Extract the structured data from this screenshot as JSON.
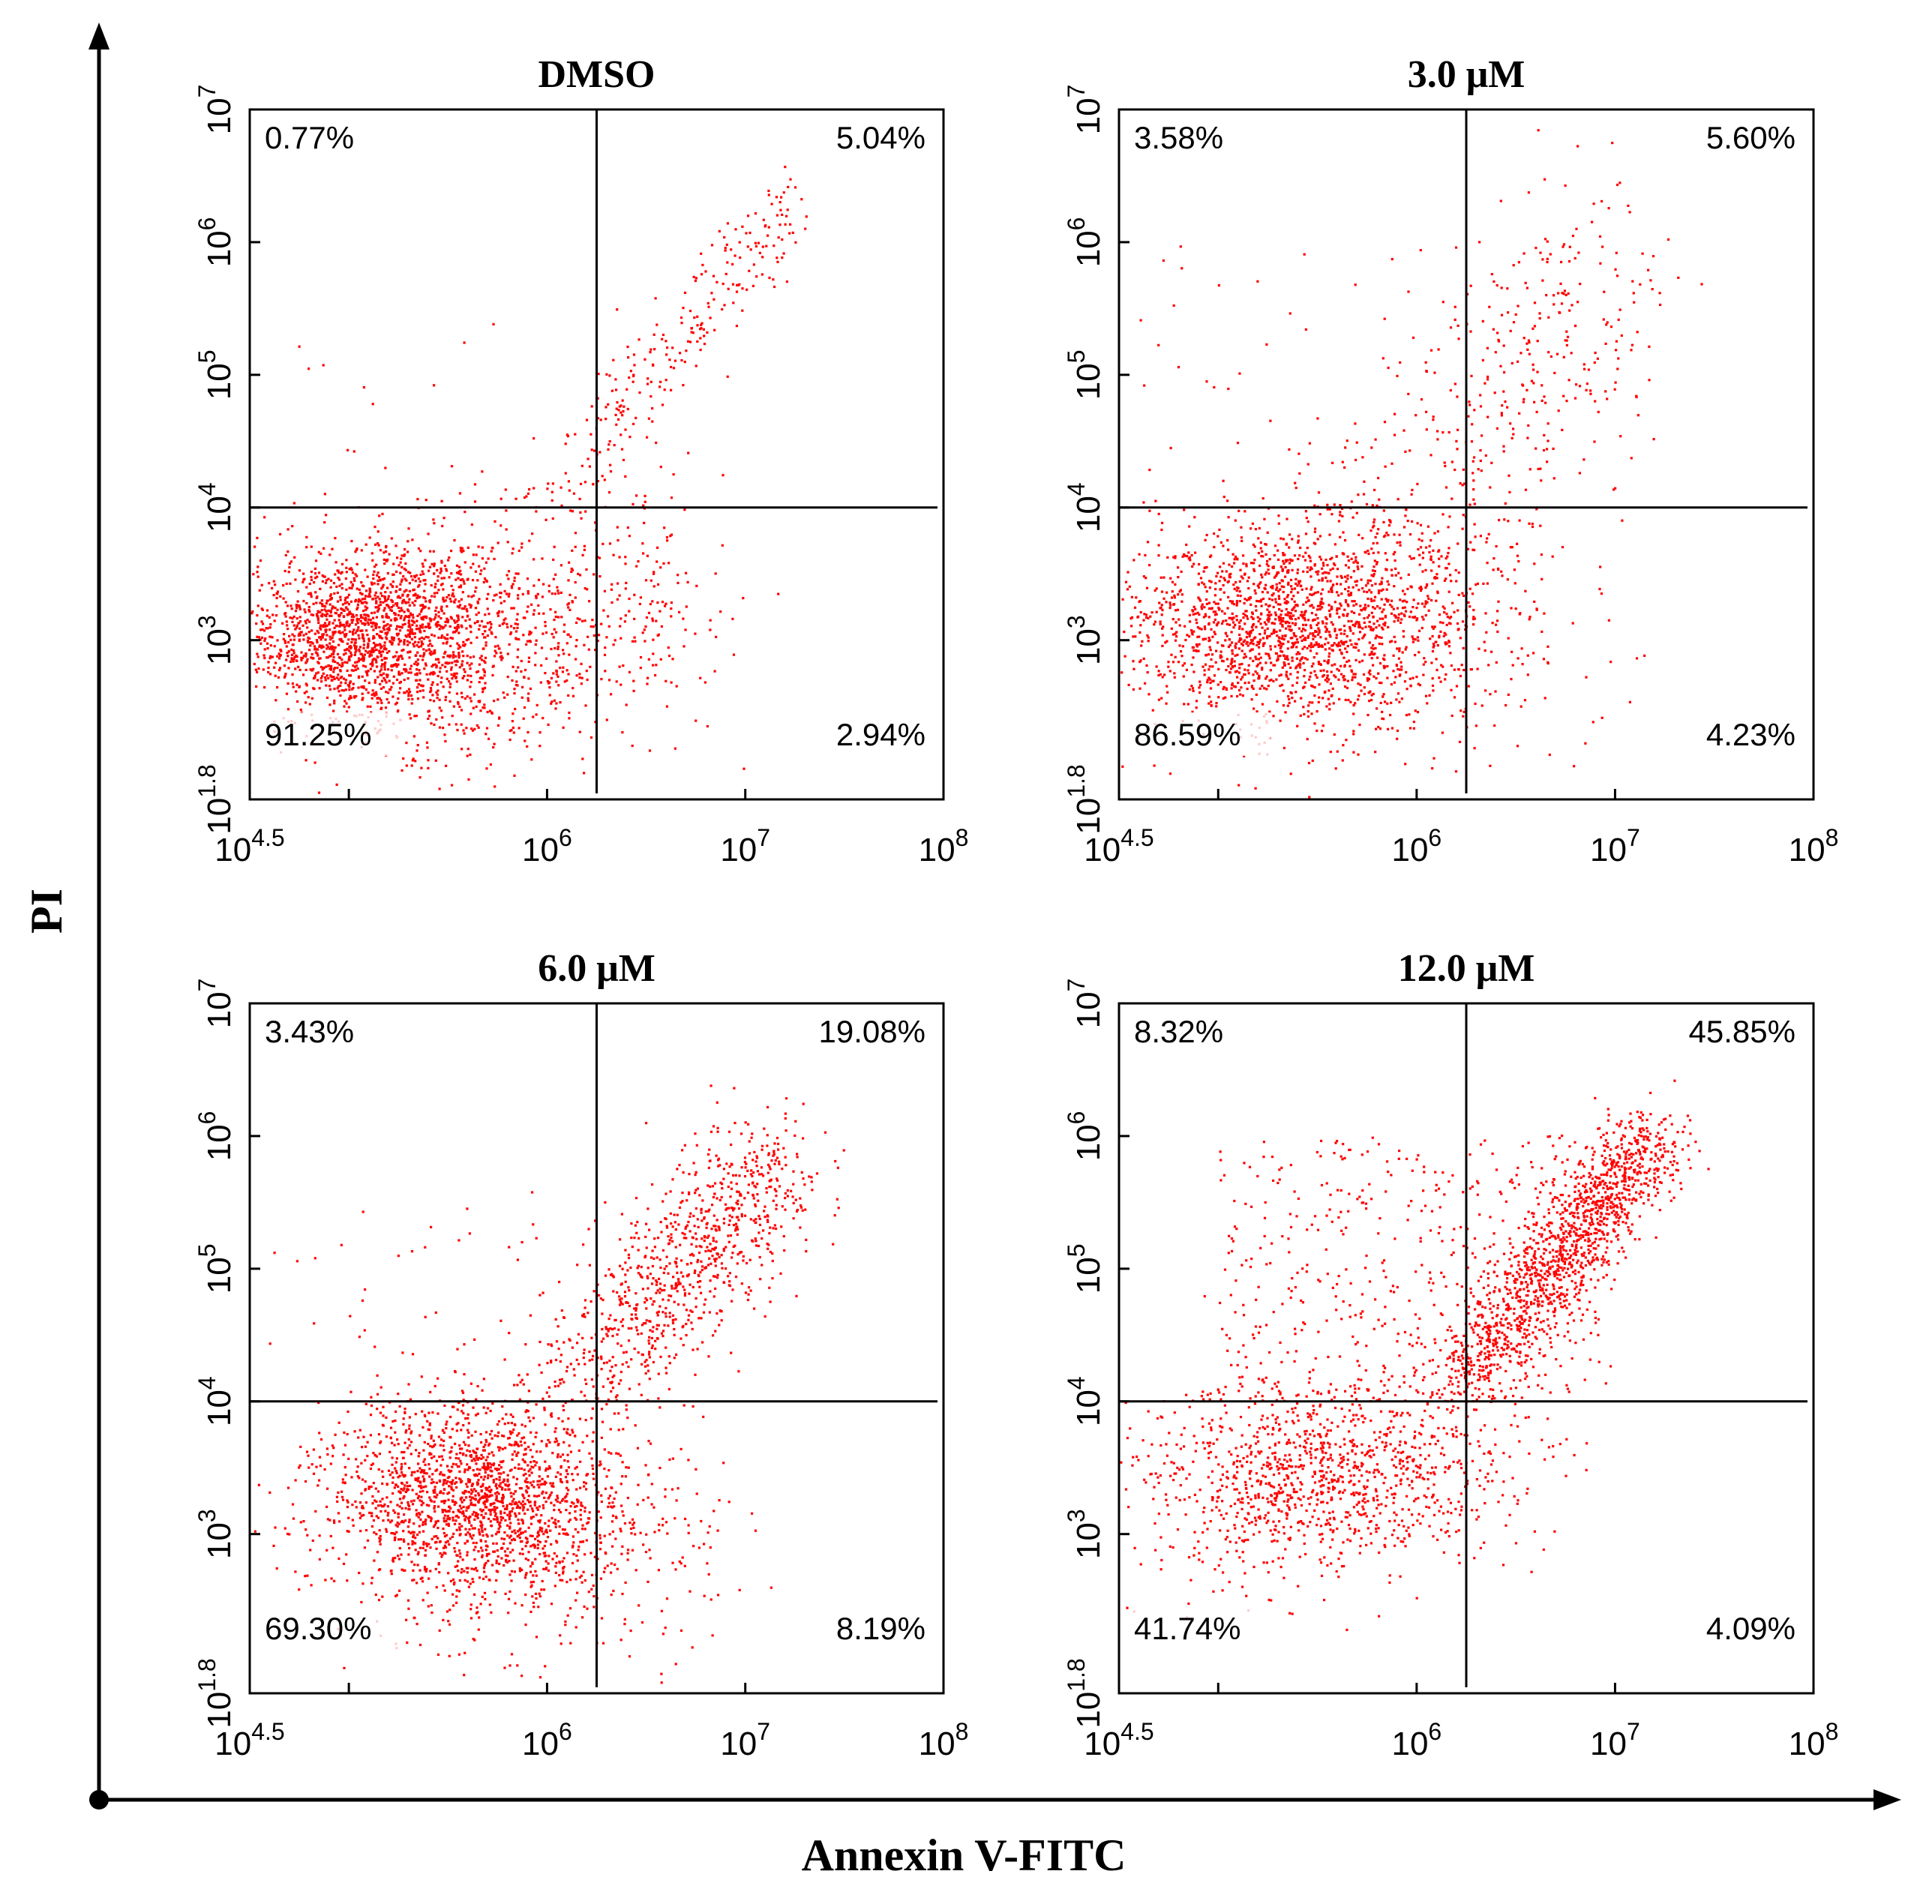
{
  "figure": {
    "y_axis_label": "PI",
    "x_axis_label": "Annexin V-FITC",
    "dot_color": "#ff0000",
    "line_color": "#000000"
  },
  "chart_data": [
    {
      "type": "scatter",
      "title": "DMSO",
      "xlabel": "Annexin V-FITC",
      "ylabel": "PI",
      "x_scale": "log",
      "y_scale": "log",
      "xlim_log10": [
        4.5,
        8
      ],
      "ylim_log10": [
        1.8,
        7
      ],
      "x_ticks": [
        {
          "base": "10",
          "exp": "4.5"
        },
        {
          "base": "10",
          "exp": "6"
        },
        {
          "base": "10",
          "exp": "7"
        },
        {
          "base": "10",
          "exp": "8"
        }
      ],
      "y_ticks": [
        {
          "base": "10",
          "exp": "1.8"
        },
        {
          "base": "10",
          "exp": "3"
        },
        {
          "base": "10",
          "exp": "4"
        },
        {
          "base": "10",
          "exp": "5"
        },
        {
          "base": "10",
          "exp": "6"
        },
        {
          "base": "10",
          "exp": "7"
        }
      ],
      "gate_x_log10": 6.25,
      "gate_y_log10": 4.0,
      "quadrants": {
        "upper_left": "0.77%",
        "upper_right": "5.04%",
        "lower_left": "91.25%",
        "lower_right": "2.94%"
      },
      "clusters": [
        {
          "cx": 5.05,
          "cy": 3.05,
          "sx": 0.3,
          "sy": 0.3,
          "n": 1400
        },
        {
          "cx": 5.55,
          "cy": 3.0,
          "sx": 0.38,
          "sy": 0.45,
          "n": 900
        },
        {
          "cx": 6.35,
          "cy": 3.2,
          "sx": 0.3,
          "sy": 0.45,
          "n": 200
        }
      ],
      "diagonal": {
        "x0": 5.9,
        "y0": 3.9,
        "x1": 7.22,
        "y1": 6.3,
        "spread": 0.15,
        "n": 260
      },
      "scatter": {
        "xmin": 4.7,
        "xmax": 7.0,
        "ymin": 2.0,
        "ymax": 5.5,
        "n": 60
      }
    },
    {
      "type": "scatter",
      "title": "3.0 μM",
      "xlabel": "Annexin V-FITC",
      "ylabel": "PI",
      "x_scale": "log",
      "y_scale": "log",
      "xlim_log10": [
        4.5,
        8
      ],
      "ylim_log10": [
        1.8,
        7
      ],
      "x_ticks": [
        {
          "base": "10",
          "exp": "4.5"
        },
        {
          "base": "10",
          "exp": "6"
        },
        {
          "base": "10",
          "exp": "7"
        },
        {
          "base": "10",
          "exp": "8"
        }
      ],
      "y_ticks": [
        {
          "base": "10",
          "exp": "1.8"
        },
        {
          "base": "10",
          "exp": "3"
        },
        {
          "base": "10",
          "exp": "4"
        },
        {
          "base": "10",
          "exp": "5"
        },
        {
          "base": "10",
          "exp": "6"
        },
        {
          "base": "10",
          "exp": "7"
        }
      ],
      "gate_x_log10": 6.25,
      "gate_y_log10": 4.0,
      "quadrants": {
        "upper_left": "3.58%",
        "upper_right": "5.60%",
        "lower_left": "86.59%",
        "lower_right": "4.23%"
      },
      "clusters": [
        {
          "cx": 5.2,
          "cy": 3.1,
          "sx": 0.38,
          "sy": 0.35,
          "n": 1200
        },
        {
          "cx": 5.75,
          "cy": 3.2,
          "sx": 0.4,
          "sy": 0.45,
          "n": 900
        }
      ],
      "diagonal": {
        "x0": 6.1,
        "y0": 4.0,
        "x1": 6.9,
        "y1": 5.8,
        "spread": 0.4,
        "n": 300
      },
      "scatter": {
        "xmin": 4.6,
        "xmax": 7.2,
        "ymin": 2.0,
        "ymax": 6.0,
        "n": 150
      }
    },
    {
      "type": "scatter",
      "title": "6.0 μM",
      "xlabel": "Annexin V-FITC",
      "ylabel": "PI",
      "x_scale": "log",
      "y_scale": "log",
      "xlim_log10": [
        4.5,
        8
      ],
      "ylim_log10": [
        1.8,
        7
      ],
      "x_ticks": [
        {
          "base": "10",
          "exp": "4.5"
        },
        {
          "base": "10",
          "exp": "6"
        },
        {
          "base": "10",
          "exp": "7"
        },
        {
          "base": "10",
          "exp": "8"
        }
      ],
      "y_ticks": [
        {
          "base": "10",
          "exp": "1.8"
        },
        {
          "base": "10",
          "exp": "3"
        },
        {
          "base": "10",
          "exp": "4"
        },
        {
          "base": "10",
          "exp": "5"
        },
        {
          "base": "10",
          "exp": "6"
        },
        {
          "base": "10",
          "exp": "7"
        }
      ],
      "gate_x_log10": 6.25,
      "gate_y_log10": 4.0,
      "quadrants": {
        "upper_left": "3.43%",
        "upper_right": "19.08%",
        "lower_left": "69.30%",
        "lower_right": "8.19%"
      },
      "clusters": [
        {
          "cx": 5.6,
          "cy": 3.3,
          "sx": 0.35,
          "sy": 0.35,
          "n": 1300
        },
        {
          "cx": 5.85,
          "cy": 3.05,
          "sx": 0.45,
          "sy": 0.5,
          "n": 700
        }
      ],
      "diagonal": {
        "x0": 6.1,
        "y0": 4.0,
        "x1": 7.15,
        "y1": 5.8,
        "spread": 0.28,
        "n": 900
      },
      "scatter": {
        "xmin": 4.6,
        "xmax": 7.0,
        "ymin": 2.0,
        "ymax": 5.6,
        "n": 120
      }
    },
    {
      "type": "scatter",
      "title": "12.0 μM",
      "xlabel": "Annexin V-FITC",
      "ylabel": "PI",
      "x_scale": "log",
      "y_scale": "log",
      "xlim_log10": [
        4.5,
        8
      ],
      "ylim_log10": [
        1.8,
        7
      ],
      "x_ticks": [
        {
          "base": "10",
          "exp": "4.5"
        },
        {
          "base": "10",
          "exp": "6"
        },
        {
          "base": "10",
          "exp": "7"
        },
        {
          "base": "10",
          "exp": "8"
        }
      ],
      "y_ticks": [
        {
          "base": "10",
          "exp": "1.8"
        },
        {
          "base": "10",
          "exp": "3"
        },
        {
          "base": "10",
          "exp": "4"
        },
        {
          "base": "10",
          "exp": "5"
        },
        {
          "base": "10",
          "exp": "6"
        },
        {
          "base": "10",
          "exp": "7"
        }
      ],
      "gate_x_log10": 6.25,
      "gate_y_log10": 4.0,
      "quadrants": {
        "upper_left": "8.32%",
        "upper_right": "45.85%",
        "lower_left": "41.74%",
        "lower_right": "4.09%"
      },
      "clusters": [
        {
          "cx": 5.6,
          "cy": 3.45,
          "sx": 0.45,
          "sy": 0.35,
          "n": 900
        },
        {
          "cx": 5.2,
          "cy": 3.3,
          "sx": 0.4,
          "sy": 0.4,
          "n": 300
        }
      ],
      "diagonal": {
        "x0": 6.2,
        "y0": 4.1,
        "x1": 7.2,
        "y1": 6.0,
        "spread": 0.18,
        "n": 1400
      },
      "scatter": {
        "xmin": 5.0,
        "xmax": 7.0,
        "ymin": 4.0,
        "ymax": 6.0,
        "n": 500
      }
    }
  ]
}
